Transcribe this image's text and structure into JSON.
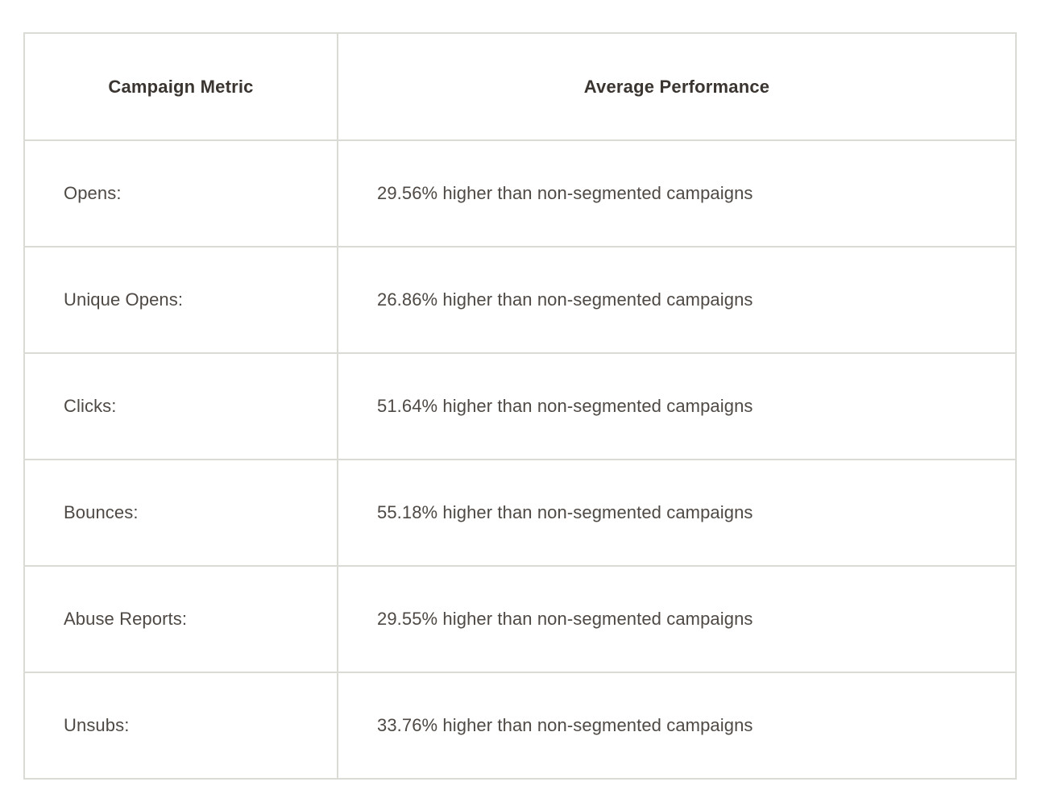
{
  "chart_data": {
    "type": "table",
    "title": "",
    "columns": [
      "Campaign Metric",
      "Average Performance"
    ],
    "rows": [
      [
        "Opens:",
        "29.56% higher than non-segmented campaigns"
      ],
      [
        "Unique Opens:",
        "26.86% higher than non-segmented campaigns"
      ],
      [
        "Clicks:",
        "51.64% higher than non-segmented campaigns"
      ],
      [
        "Bounces:",
        "55.18% higher than non-segmented campaigns"
      ],
      [
        "Abuse Reports:",
        "29.55% higher than non-segmented campaigns"
      ],
      [
        "Unsubs:",
        "33.76% higher than non-segmented campaigns"
      ]
    ],
    "values_pct": [
      29.56,
      26.86,
      51.64,
      55.18,
      29.55,
      33.76
    ]
  },
  "colors": {
    "background": "#ffffff",
    "border": "#dbdbd5",
    "header_text": "#3a3530",
    "body_text": "#4e4944"
  }
}
